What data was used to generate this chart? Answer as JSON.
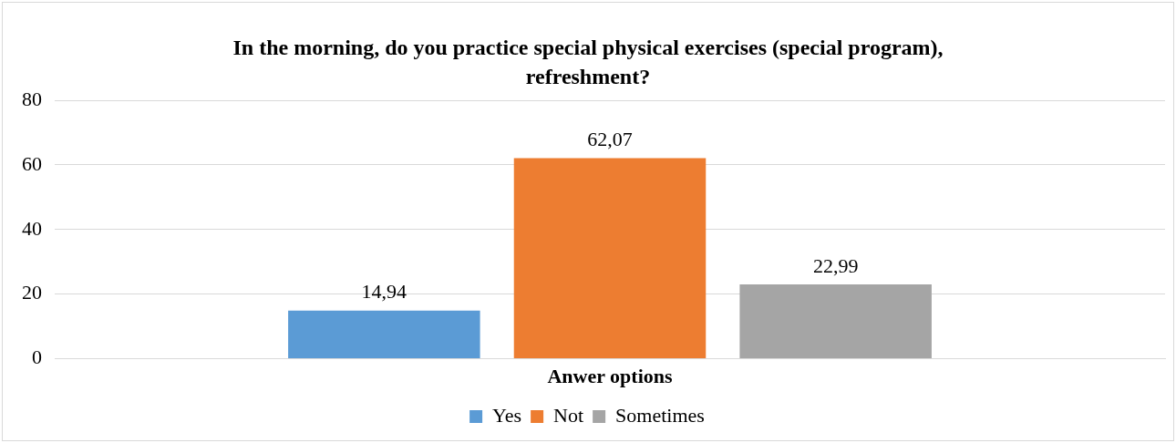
{
  "chart_data": {
    "type": "bar",
    "title": "In the morning, do you practice special physical exercises (special program), refreshment?",
    "categories": [
      "Anwer options"
    ],
    "series": [
      {
        "name": "Yes",
        "color": "#5b9bd5",
        "values": [
          14.94
        ],
        "value_labels": [
          "14,94"
        ]
      },
      {
        "name": "Not",
        "color": "#ed7d31",
        "values": [
          62.07
        ],
        "value_labels": [
          "62,07"
        ]
      },
      {
        "name": "Sometimes",
        "color": "#a5a5a5",
        "values": [
          22.99
        ],
        "value_labels": [
          "22,99"
        ]
      }
    ],
    "ylim": [
      0,
      80
    ],
    "yticks": [
      0,
      20,
      40,
      60,
      80
    ],
    "grid": "y",
    "legend": "bottom"
  }
}
